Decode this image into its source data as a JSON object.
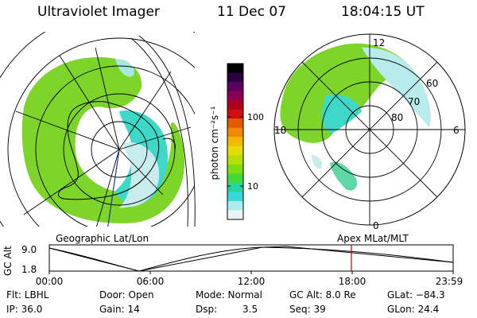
{
  "header": {
    "instrument": "Ultraviolet Imager",
    "date": "11 Dec 07",
    "time": "18:04:15 UT"
  },
  "colorbar": {
    "unit_label": "photon cm⁻²s⁻¹",
    "ticks": [
      "100",
      "10"
    ],
    "colors": [
      "#000000",
      "#2a0040",
      "#5a0060",
      "#8a0050",
      "#b00020",
      "#d01010",
      "#e05a00",
      "#f08a00",
      "#f5b800",
      "#e6dd00",
      "#b6e000",
      "#7adf10",
      "#44d838",
      "#28d6a0",
      "#38d8d8",
      "#a8ecec",
      "#e8f4f4"
    ]
  },
  "geo_map": {
    "label": "Geographic Lat/Lon"
  },
  "polar_map": {
    "label": "Apex MLat/MLT",
    "mlt_labels": {
      "top": "12",
      "right": "6",
      "left": "18",
      "bottom": "0"
    },
    "lat_labels": [
      "60",
      "70",
      "80"
    ]
  },
  "timeline": {
    "ylabel": "GC Alt",
    "y_ticks": [
      "9.0",
      "1.8"
    ],
    "x_ticks": [
      "00:00",
      "06:00",
      "12:00",
      "18:00",
      "23:59"
    ],
    "current_marker_color": "#cc0000"
  },
  "info": {
    "row1": {
      "flt": "Flt: LBHL",
      "door": "Door: Open",
      "mode": "Mode: Normal",
      "gcalt": "GC Alt: 8.0 Re",
      "glat": "GLat: −84.3"
    },
    "row2": {
      "ip": "IP: 36.0",
      "gain": "Gain: 14",
      "dsp_label": "Dsp:",
      "dsp_value": "3.5",
      "seq": "Seq: 39",
      "glon": "GLon: 24.4"
    }
  }
}
